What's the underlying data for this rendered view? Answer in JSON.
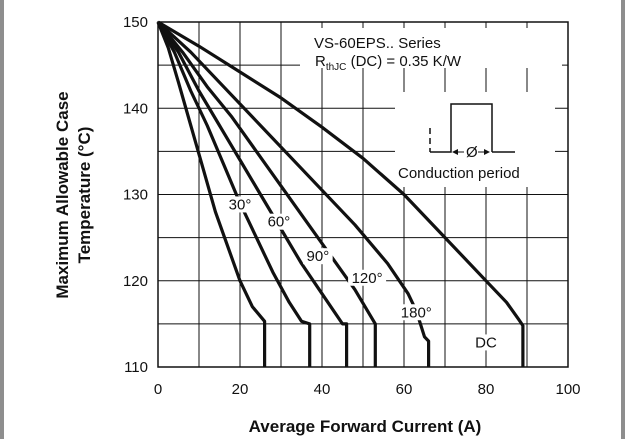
{
  "chart_data": {
    "type": "line",
    "title": "",
    "annotations": {
      "series_name": "VS-60EPS.. Series",
      "rth_main": "R",
      "rth_sub": "thJC",
      "rth_rest": " (DC) = 0.35 K/W",
      "conduction_label": "Conduction period",
      "phi_symbol": "Ø"
    },
    "xlabel": "Average Forward Current (A)",
    "ylabel_line1": "Maximum Allowable Case",
    "ylabel_line2": "Temperature (°C)",
    "xlim": [
      0,
      100
    ],
    "ylim": [
      110,
      150
    ],
    "x_ticks": [
      "0",
      "20",
      "40",
      "60",
      "80",
      "100"
    ],
    "y_ticks": [
      "110",
      "120",
      "130",
      "140",
      "150"
    ],
    "grid": true,
    "series": [
      {
        "name": "30°",
        "points": [
          [
            0,
            150
          ],
          [
            2.5,
            147
          ],
          [
            5,
            143
          ],
          [
            8,
            138
          ],
          [
            11,
            133
          ],
          [
            14,
            128
          ],
          [
            17,
            124
          ],
          [
            20,
            120
          ],
          [
            23,
            117
          ],
          [
            26,
            115.3
          ],
          [
            26,
            110
          ]
        ]
      },
      {
        "name": "60°",
        "points": [
          [
            0,
            150
          ],
          [
            4,
            146.5
          ],
          [
            8,
            142
          ],
          [
            12,
            138
          ],
          [
            16,
            133.5
          ],
          [
            20,
            129
          ],
          [
            24,
            125
          ],
          [
            28,
            121
          ],
          [
            32,
            117.5
          ],
          [
            35,
            115.3
          ],
          [
            37,
            115
          ],
          [
            37,
            110
          ]
        ]
      },
      {
        "name": "90°",
        "points": [
          [
            0,
            150
          ],
          [
            5,
            146.5
          ],
          [
            10,
            142
          ],
          [
            15,
            138
          ],
          [
            20,
            134
          ],
          [
            25,
            130
          ],
          [
            30,
            126
          ],
          [
            35,
            122
          ],
          [
            40,
            118.5
          ],
          [
            45,
            115
          ],
          [
            46,
            115
          ],
          [
            46,
            110
          ]
        ]
      },
      {
        "name": "120°",
        "points": [
          [
            0,
            150
          ],
          [
            6,
            146.5
          ],
          [
            12,
            142.5
          ],
          [
            18,
            139
          ],
          [
            24,
            135
          ],
          [
            30,
            131
          ],
          [
            36,
            127
          ],
          [
            42,
            123
          ],
          [
            48,
            119
          ],
          [
            53,
            115
          ],
          [
            53,
            110
          ]
        ]
      },
      {
        "name": "180°",
        "points": [
          [
            0,
            150
          ],
          [
            8,
            146.5
          ],
          [
            16,
            142.5
          ],
          [
            24,
            138.5
          ],
          [
            32,
            134.5
          ],
          [
            40,
            130.5
          ],
          [
            48,
            126.5
          ],
          [
            56,
            122
          ],
          [
            61,
            118.5
          ],
          [
            63,
            116.5
          ],
          [
            65,
            113.5
          ],
          [
            66,
            113
          ],
          [
            66,
            110
          ]
        ]
      },
      {
        "name": "DC",
        "points": [
          [
            0,
            150
          ],
          [
            10,
            147.2
          ],
          [
            20,
            144.2
          ],
          [
            30,
            141.2
          ],
          [
            40,
            137.8
          ],
          [
            50,
            134.2
          ],
          [
            60,
            130
          ],
          [
            70,
            125
          ],
          [
            80,
            120
          ],
          [
            85,
            117.5
          ],
          [
            88,
            115.5
          ],
          [
            89,
            114.8
          ],
          [
            89,
            110
          ]
        ]
      }
    ],
    "series_label_positions": [
      {
        "name": "30°",
        "x": 20,
        "y": 128.5
      },
      {
        "name": "60°",
        "x": 29.5,
        "y": 126.5
      },
      {
        "name": "90°",
        "x": 39,
        "y": 122.5
      },
      {
        "name": "120°",
        "x": 51,
        "y": 120
      },
      {
        "name": "180°",
        "x": 63,
        "y": 116
      },
      {
        "name": "DC",
        "x": 80,
        "y": 112.5
      }
    ]
  }
}
